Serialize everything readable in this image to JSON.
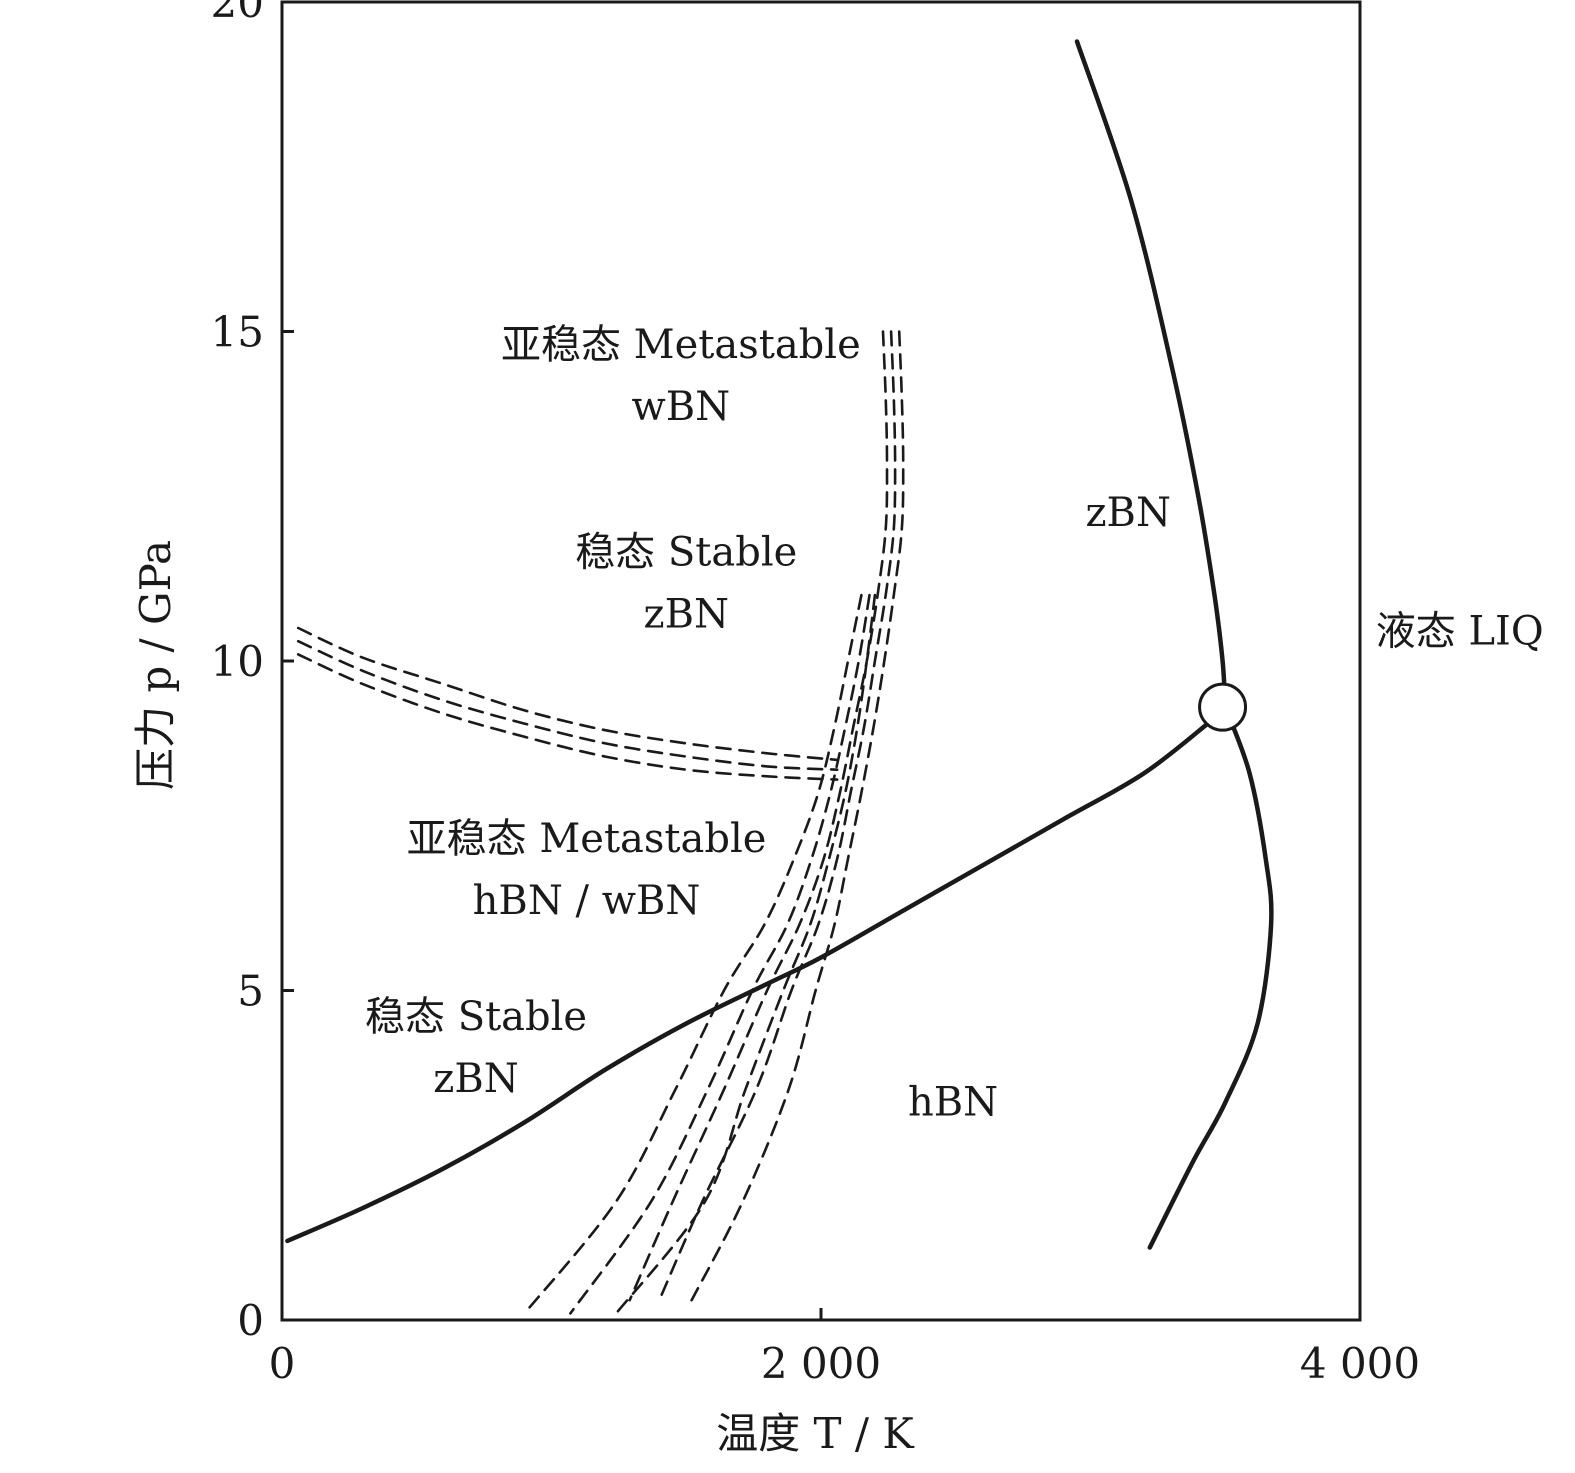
{
  "chart_data": {
    "type": "line",
    "xlabel": "温度 T / K",
    "ylabel": "压力 p / GPa",
    "xlim": [
      0,
      4000
    ],
    "ylim": [
      0,
      20
    ],
    "xticks": [
      "0",
      "2 000",
      "4 000"
    ],
    "yticks": [
      "0",
      "5",
      "10",
      "15",
      "20"
    ],
    "x_tick_values": [
      0,
      2000,
      4000
    ],
    "y_tick_values": [
      0,
      5,
      10,
      15,
      20
    ],
    "regions": [
      {
        "lines": [
          "亚稳态 Metastable",
          "wBN"
        ],
        "at": [
          1480,
          14.6
        ]
      },
      {
        "lines": [
          "稳态 Stable",
          "zBN"
        ],
        "at": [
          1500,
          11.45
        ]
      },
      {
        "lines": [
          "亚稳态 Metastable",
          "hBN / wBN"
        ],
        "at": [
          1130,
          7.1
        ]
      },
      {
        "lines": [
          "稳态 Stable",
          "zBN"
        ],
        "at": [
          720,
          4.4
        ]
      },
      {
        "lines": [
          "hBN"
        ],
        "at": [
          2490,
          3.1
        ]
      },
      {
        "lines": [
          "zBN"
        ],
        "at": [
          3140,
          12.05
        ]
      },
      {
        "lines": [
          "液态 LIQ"
        ],
        "at": [
          4370,
          10.25
        ]
      }
    ],
    "series": [
      {
        "style": "solid",
        "x": [
          20,
          300,
          600,
          900,
          1200,
          1500,
          1800,
          2000,
          2300,
          2600,
          2900,
          3200,
          3450
        ],
        "y": [
          1.2,
          1.7,
          2.3,
          3.0,
          3.8,
          4.5,
          5.1,
          5.5,
          6.2,
          6.9,
          7.6,
          8.3,
          9.1
        ]
      },
      {
        "style": "solid",
        "x": [
          2950,
          3150,
          3300,
          3400,
          3460,
          3490,
          3500
        ],
        "y": [
          19.4,
          17.0,
          14.5,
          12.5,
          11.0,
          10.0,
          9.3
        ]
      },
      {
        "style": "solid",
        "x": [
          3500,
          3590,
          3650,
          3670,
          3620,
          3500,
          3380,
          3220
        ],
        "y": [
          9.3,
          8.3,
          7.0,
          6.0,
          4.5,
          3.3,
          2.4,
          1.1
        ]
      },
      {
        "style": "dashed",
        "x": [
          60,
          300,
          600,
          900,
          1200,
          1500,
          1800,
          2060
        ],
        "y": [
          10.5,
          10.05,
          9.65,
          9.25,
          8.95,
          8.75,
          8.6,
          8.5
        ]
      },
      {
        "style": "dashed",
        "x": [
          60,
          300,
          600,
          900,
          1200,
          1500,
          1800,
          2060
        ],
        "y": [
          10.3,
          9.85,
          9.4,
          9.05,
          8.75,
          8.55,
          8.4,
          8.35
        ]
      },
      {
        "style": "dashed",
        "x": [
          60,
          300,
          600,
          900,
          1200,
          1500,
          1800,
          2060
        ],
        "y": [
          10.1,
          9.65,
          9.2,
          8.85,
          8.55,
          8.35,
          8.25,
          8.2
        ]
      },
      {
        "style": "dashed",
        "x": [
          2230,
          2240,
          2245,
          2240,
          2210,
          2170,
          2120,
          2070,
          2010,
          1920,
          1800,
          1640,
          1450,
          1290
        ],
        "y": [
          15.0,
          14.0,
          13.0,
          12.0,
          11.0,
          10.0,
          9.0,
          8.0,
          7.0,
          6.0,
          5.0,
          3.5,
          1.8,
          0.3
        ]
      },
      {
        "style": "dashed",
        "x": [
          2260,
          2270,
          2275,
          2270,
          2240,
          2200,
          2160,
          2110,
          2060,
          1990,
          1890,
          1760,
          1560,
          1400
        ],
        "y": [
          15.0,
          14.0,
          13.0,
          12.0,
          11.0,
          10.0,
          9.0,
          8.0,
          7.0,
          6.0,
          5.0,
          3.5,
          1.8,
          0.3
        ]
      },
      {
        "style": "dashed",
        "x": [
          2290,
          2300,
          2305,
          2300,
          2270,
          2235,
          2195,
          2150,
          2100,
          2050,
          1980,
          1880,
          1710,
          1520
        ],
        "y": [
          15.0,
          14.0,
          13.0,
          12.0,
          11.0,
          10.0,
          9.0,
          8.0,
          7.0,
          6.0,
          5.0,
          3.5,
          1.8,
          0.3
        ]
      },
      {
        "style": "dashed",
        "x": [
          2150,
          2100,
          2050,
          1990,
          1900,
          1790,
          1640,
          1460,
          1240,
          900
        ],
        "y": [
          11.0,
          10.0,
          9.0,
          8.0,
          7.0,
          6.0,
          5.0,
          3.5,
          1.8,
          0.1
        ]
      },
      {
        "style": "dashed",
        "x": [
          2180,
          2140,
          2090,
          2035,
          1965,
          1875,
          1745,
          1580,
          1370,
          1070
        ],
        "y": [
          11.0,
          10.0,
          9.0,
          8.0,
          7.0,
          6.0,
          5.0,
          3.5,
          1.8,
          0.1
        ]
      },
      {
        "style": "dashed",
        "x": [
          2200,
          2170,
          2135,
          2090,
          2030,
          1960,
          1860,
          1720,
          1570,
          1240
        ],
        "y": [
          11.0,
          10.0,
          9.0,
          8.0,
          7.0,
          6.0,
          5.0,
          3.5,
          1.8,
          0.1
        ]
      }
    ],
    "markers": [
      {
        "shape": "open-circle",
        "x": [
          3490
        ],
        "y": [
          9.3
        ]
      }
    ],
    "grid": false
  }
}
